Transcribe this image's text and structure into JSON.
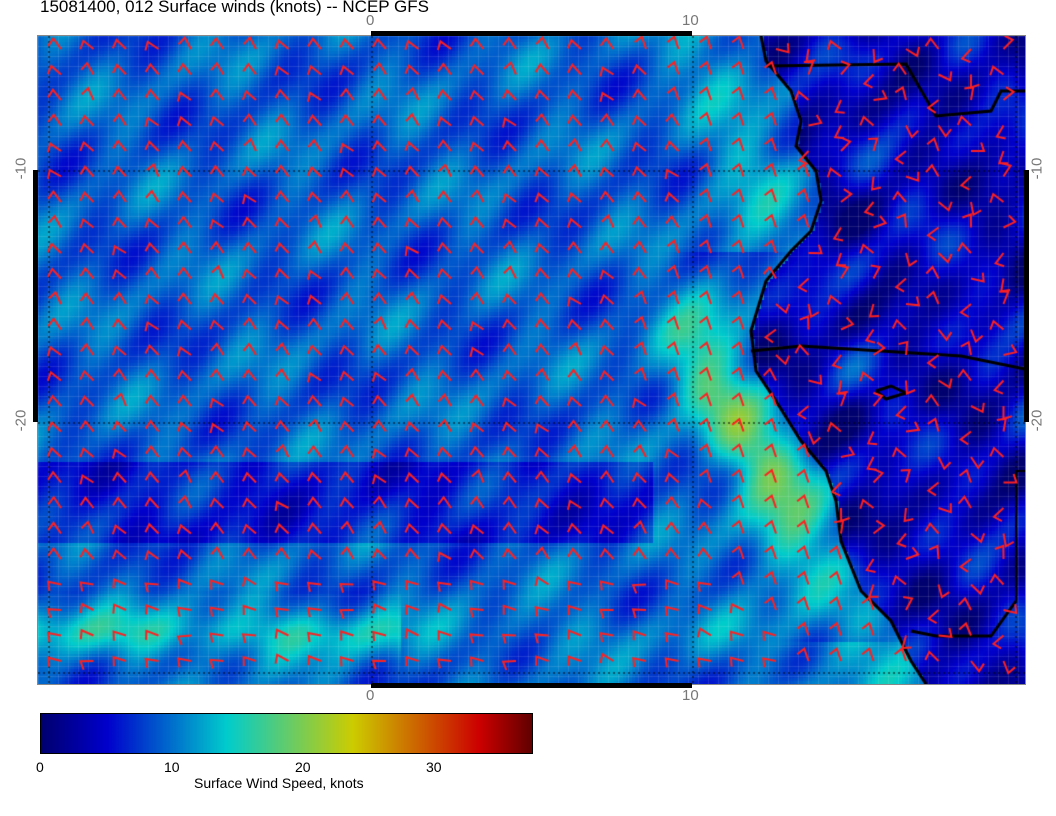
{
  "title": "15081400, 012 Surface winds (knots) -- NCEP GFS",
  "axes": {
    "lon_ticks": [
      "0",
      "10"
    ],
    "lat_ticks": [
      "-10",
      "-20"
    ]
  },
  "map": {
    "lon_range": [
      -10.4,
      20.3
    ],
    "lat_range": [
      -30.4,
      -4.6
    ],
    "barb_color": "#ff2020",
    "coast_color": "#000000",
    "grid": "dotted at 10 degree intervals"
  },
  "colorbar": {
    "label": "Surface Wind Speed, knots",
    "ticks": [
      "0",
      "10",
      "20",
      "30"
    ],
    "range": [
      0,
      37
    ],
    "colors": [
      "#00006e",
      "#0000cc",
      "#00cccc",
      "#cccc00",
      "#cc0000",
      "#600000"
    ]
  }
}
